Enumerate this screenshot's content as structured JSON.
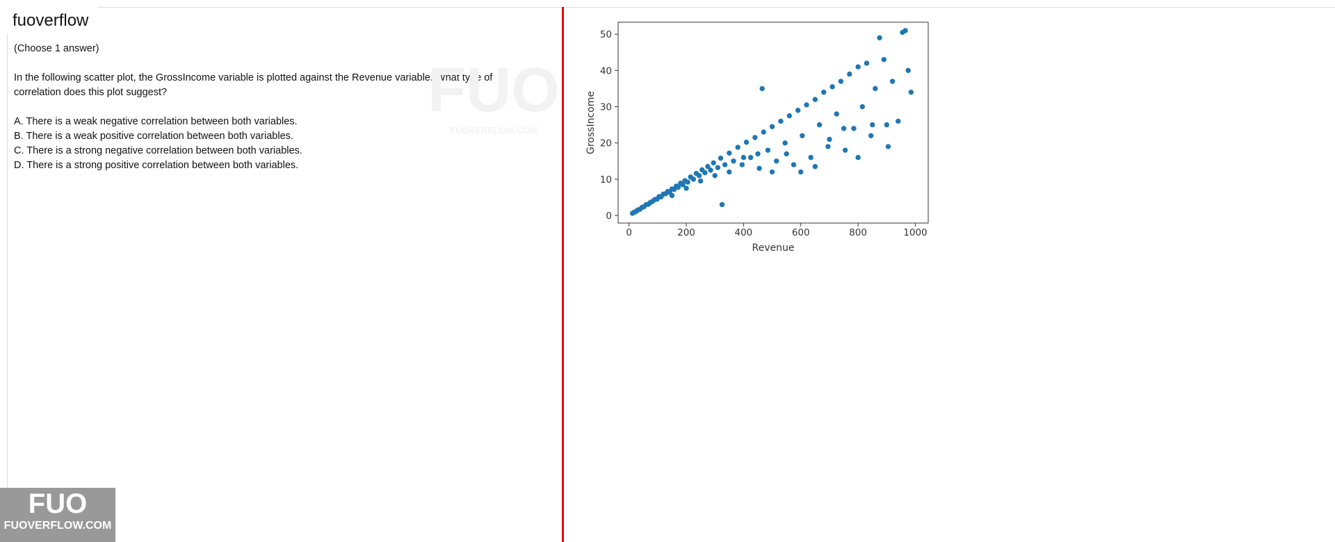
{
  "header": {
    "title": "fuoverflow"
  },
  "question": {
    "instruction": "(Choose 1 answer)",
    "text": "In the following scatter plot, the GrossIncome variable is plotted against the Revenue variable. What type of correlation does this plot suggest?",
    "options": [
      "A. There is a weak negative correlation between both variables.",
      "B. There is a weak positive correlation between both variables.",
      "C. There is a strong negative correlation between both variables.",
      "D. There is a strong positive correlation between both variables."
    ]
  },
  "watermark": {
    "logo": "FUO",
    "site": "FUOVERFLOW.COM"
  },
  "badge": {
    "logo": "FUO",
    "site": "FUOVERFLOW.COM"
  },
  "chart_data": {
    "type": "scatter",
    "x_label": "Revenue",
    "y_label": "GrossIncome",
    "color": "#1f77b4",
    "xlim": [
      -38,
      1045
    ],
    "ylim": [
      -2.1,
      53.3
    ],
    "xticks": [
      0,
      200,
      400,
      600,
      800,
      1000
    ],
    "yticks": [
      0,
      10,
      20,
      30,
      40,
      50
    ],
    "x": [
      12,
      18,
      25,
      30,
      38,
      45,
      52,
      60,
      68,
      75,
      82,
      90,
      98,
      105,
      112,
      120,
      128,
      135,
      142,
      150,
      158,
      165,
      172,
      180,
      188,
      195,
      205,
      215,
      225,
      235,
      245,
      255,
      265,
      275,
      285,
      295,
      310,
      320,
      335,
      350,
      365,
      380,
      395,
      410,
      425,
      440,
      455,
      470,
      485,
      500,
      515,
      530,
      545,
      560,
      575,
      590,
      605,
      620,
      635,
      650,
      665,
      680,
      695,
      710,
      725,
      740,
      755,
      770,
      785,
      800,
      815,
      830,
      845,
      860,
      875,
      890,
      905,
      920,
      940,
      955,
      965,
      975,
      985,
      465,
      325,
      150,
      200,
      250,
      300,
      350,
      400,
      450,
      500,
      550,
      600,
      650,
      700,
      750,
      800,
      850,
      900
    ],
    "y": [
      0.6,
      0.9,
      1.1,
      1.5,
      1.7,
      2.2,
      2.4,
      3,
      3.1,
      3.6,
      3.9,
      4.4,
      4.5,
      5.2,
      5.1,
      5.9,
      6,
      6.6,
      6.4,
      7.3,
      7.2,
      8.1,
      7.8,
      8.9,
      8.5,
      9.6,
      9.2,
      10.6,
      10,
      11.6,
      11,
      12.6,
      11.8,
      13.5,
      12.5,
      14.5,
      13.2,
      15.8,
      14,
      17.2,
      15,
      18.8,
      14,
      20.2,
      16,
      21.5,
      13,
      23,
      18,
      24.5,
      15,
      26,
      20,
      27.5,
      14,
      29,
      22,
      30.5,
      16,
      32,
      25,
      34,
      19,
      35.5,
      28,
      37,
      18,
      39,
      24,
      41,
      30,
      42,
      22,
      35,
      49,
      43,
      19,
      37,
      26,
      50.5,
      51,
      40,
      34,
      35,
      3,
      5.5,
      7.5,
      9.5,
      11,
      12,
      16,
      17,
      12,
      17,
      12,
      13.5,
      21,
      24,
      16,
      25,
      25
    ]
  }
}
